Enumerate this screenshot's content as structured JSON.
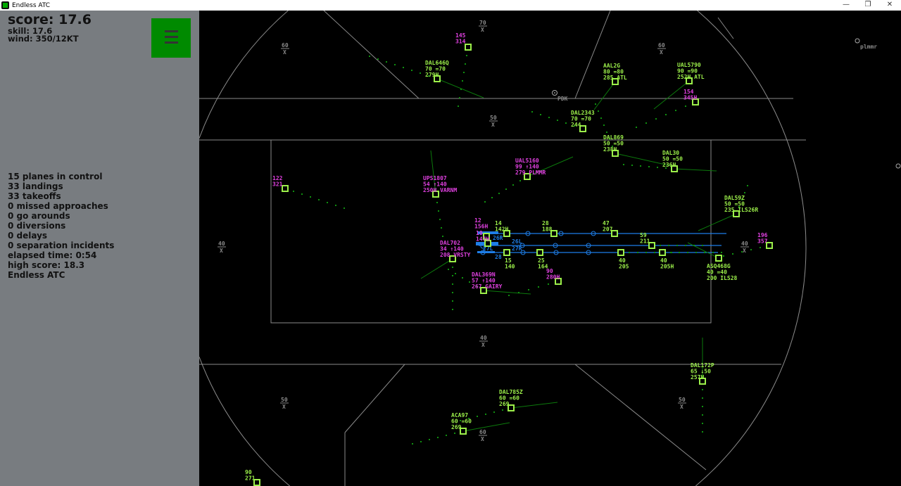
{
  "window": {
    "title": "Endless ATC",
    "minimize": "—",
    "restore": "❐",
    "close": "✕"
  },
  "sidebar": {
    "score": "score: 17.6",
    "skill": "skill: 17.6",
    "wind": "wind: 350/12KT",
    "menu_icon": "hamburger-menu-icon",
    "stats": [
      "15 planes in control",
      "33 landings",
      "33 takeoffs",
      "0 missed approaches",
      "0 go arounds",
      "0 diversions",
      "0 delays",
      "0 separation incidents",
      "elapsed time: 0:54",
      "high score: 18.3",
      "Endless ATC"
    ]
  },
  "colors": {
    "green": "#9cf04a",
    "magenta": "#e040e0",
    "blue": "#1e7ee8",
    "trail": "#0f8f0f",
    "grid": "#8a8a8a"
  },
  "fixes": [
    {
      "name": "PDK"
    },
    {
      "name": "plmmr"
    }
  ],
  "altitude_markers": [
    "70",
    "60",
    "60",
    "50",
    "40",
    "40",
    "40",
    "50",
    "50",
    "60"
  ],
  "runway_labels": [
    "26R",
    "26L",
    "27R",
    "27L",
    "28"
  ],
  "aircraft": [
    {
      "lines": [
        "145",
        "314"
      ],
      "color": "magenta"
    },
    {
      "lines": [
        "DAL646Q",
        "70 =70",
        "279H"
      ],
      "color": "green"
    },
    {
      "lines": [
        "AAL2G",
        "80 =80",
        "285 ATL"
      ],
      "color": "green"
    },
    {
      "lines": [
        "UAL5790",
        "90 =90",
        "252H ATL"
      ],
      "color": "green"
    },
    {
      "lines": [
        "154",
        "345H"
      ],
      "color": "magenta"
    },
    {
      "lines": [
        "DAL2343",
        "70 =70",
        "244"
      ],
      "color": "green"
    },
    {
      "lines": [
        "DAL869",
        "50 =50",
        "238H"
      ],
      "color": "green"
    },
    {
      "lines": [
        "DAL30",
        "50 =50",
        "236H"
      ],
      "color": "green"
    },
    {
      "lines": [
        "UAL5160",
        "99 ↑140",
        "279 PLMMR"
      ],
      "color": "magenta"
    },
    {
      "lines": [
        "UPS1807",
        "54 ↑140",
        "250H VARNM"
      ],
      "color": "magenta"
    },
    {
      "lines": [
        "122",
        "321"
      ],
      "color": "magenta"
    },
    {
      "lines": [
        "DAL59Z",
        "50 =50",
        "235 ILS26R"
      ],
      "color": "green"
    },
    {
      "lines": [
        "196",
        "357"
      ],
      "color": "magenta"
    },
    {
      "lines": [
        "ASQ468G",
        "40 =40",
        "200 ILS28"
      ],
      "color": "green"
    },
    {
      "lines": [
        "DAL702",
        "34 ↑140",
        "208 VRSTY"
      ],
      "color": "magenta"
    },
    {
      "lines": [
        "DAL369N",
        "57 ↑140",
        "267 GAIRY"
      ],
      "color": "magenta"
    },
    {
      "lines": [
        "90",
        "280H"
      ],
      "color": "magenta"
    },
    {
      "lines": [
        "14",
        "142H"
      ],
      "color": "green"
    },
    {
      "lines": [
        "28",
        "188"
      ],
      "color": "green"
    },
    {
      "lines": [
        "47",
        "207"
      ],
      "color": "green"
    },
    {
      "lines": [
        "59",
        "211"
      ],
      "color": "green"
    },
    {
      "lines": [
        "15",
        "140"
      ],
      "color": "green"
    },
    {
      "lines": [
        "25",
        "164"
      ],
      "color": "green"
    },
    {
      "lines": [
        "40",
        "205"
      ],
      "color": "green"
    },
    {
      "lines": [
        "40",
        "205H"
      ],
      "color": "green"
    },
    {
      "lines": [
        "12",
        "156H"
      ],
      "color": "magenta"
    },
    {
      "lines": [
        "10",
        "147H"
      ],
      "color": "magenta"
    },
    {
      "lines": [
        "DAL172P",
        "65 ↓50",
        "257H"
      ],
      "color": "green"
    },
    {
      "lines": [
        "DAL785Z",
        "60 =60",
        "269"
      ],
      "color": "green"
    },
    {
      "lines": [
        "ACA97",
        "60 =60",
        "269"
      ],
      "color": "green"
    },
    {
      "lines": [
        "90",
        "271"
      ],
      "color": "green"
    }
  ]
}
